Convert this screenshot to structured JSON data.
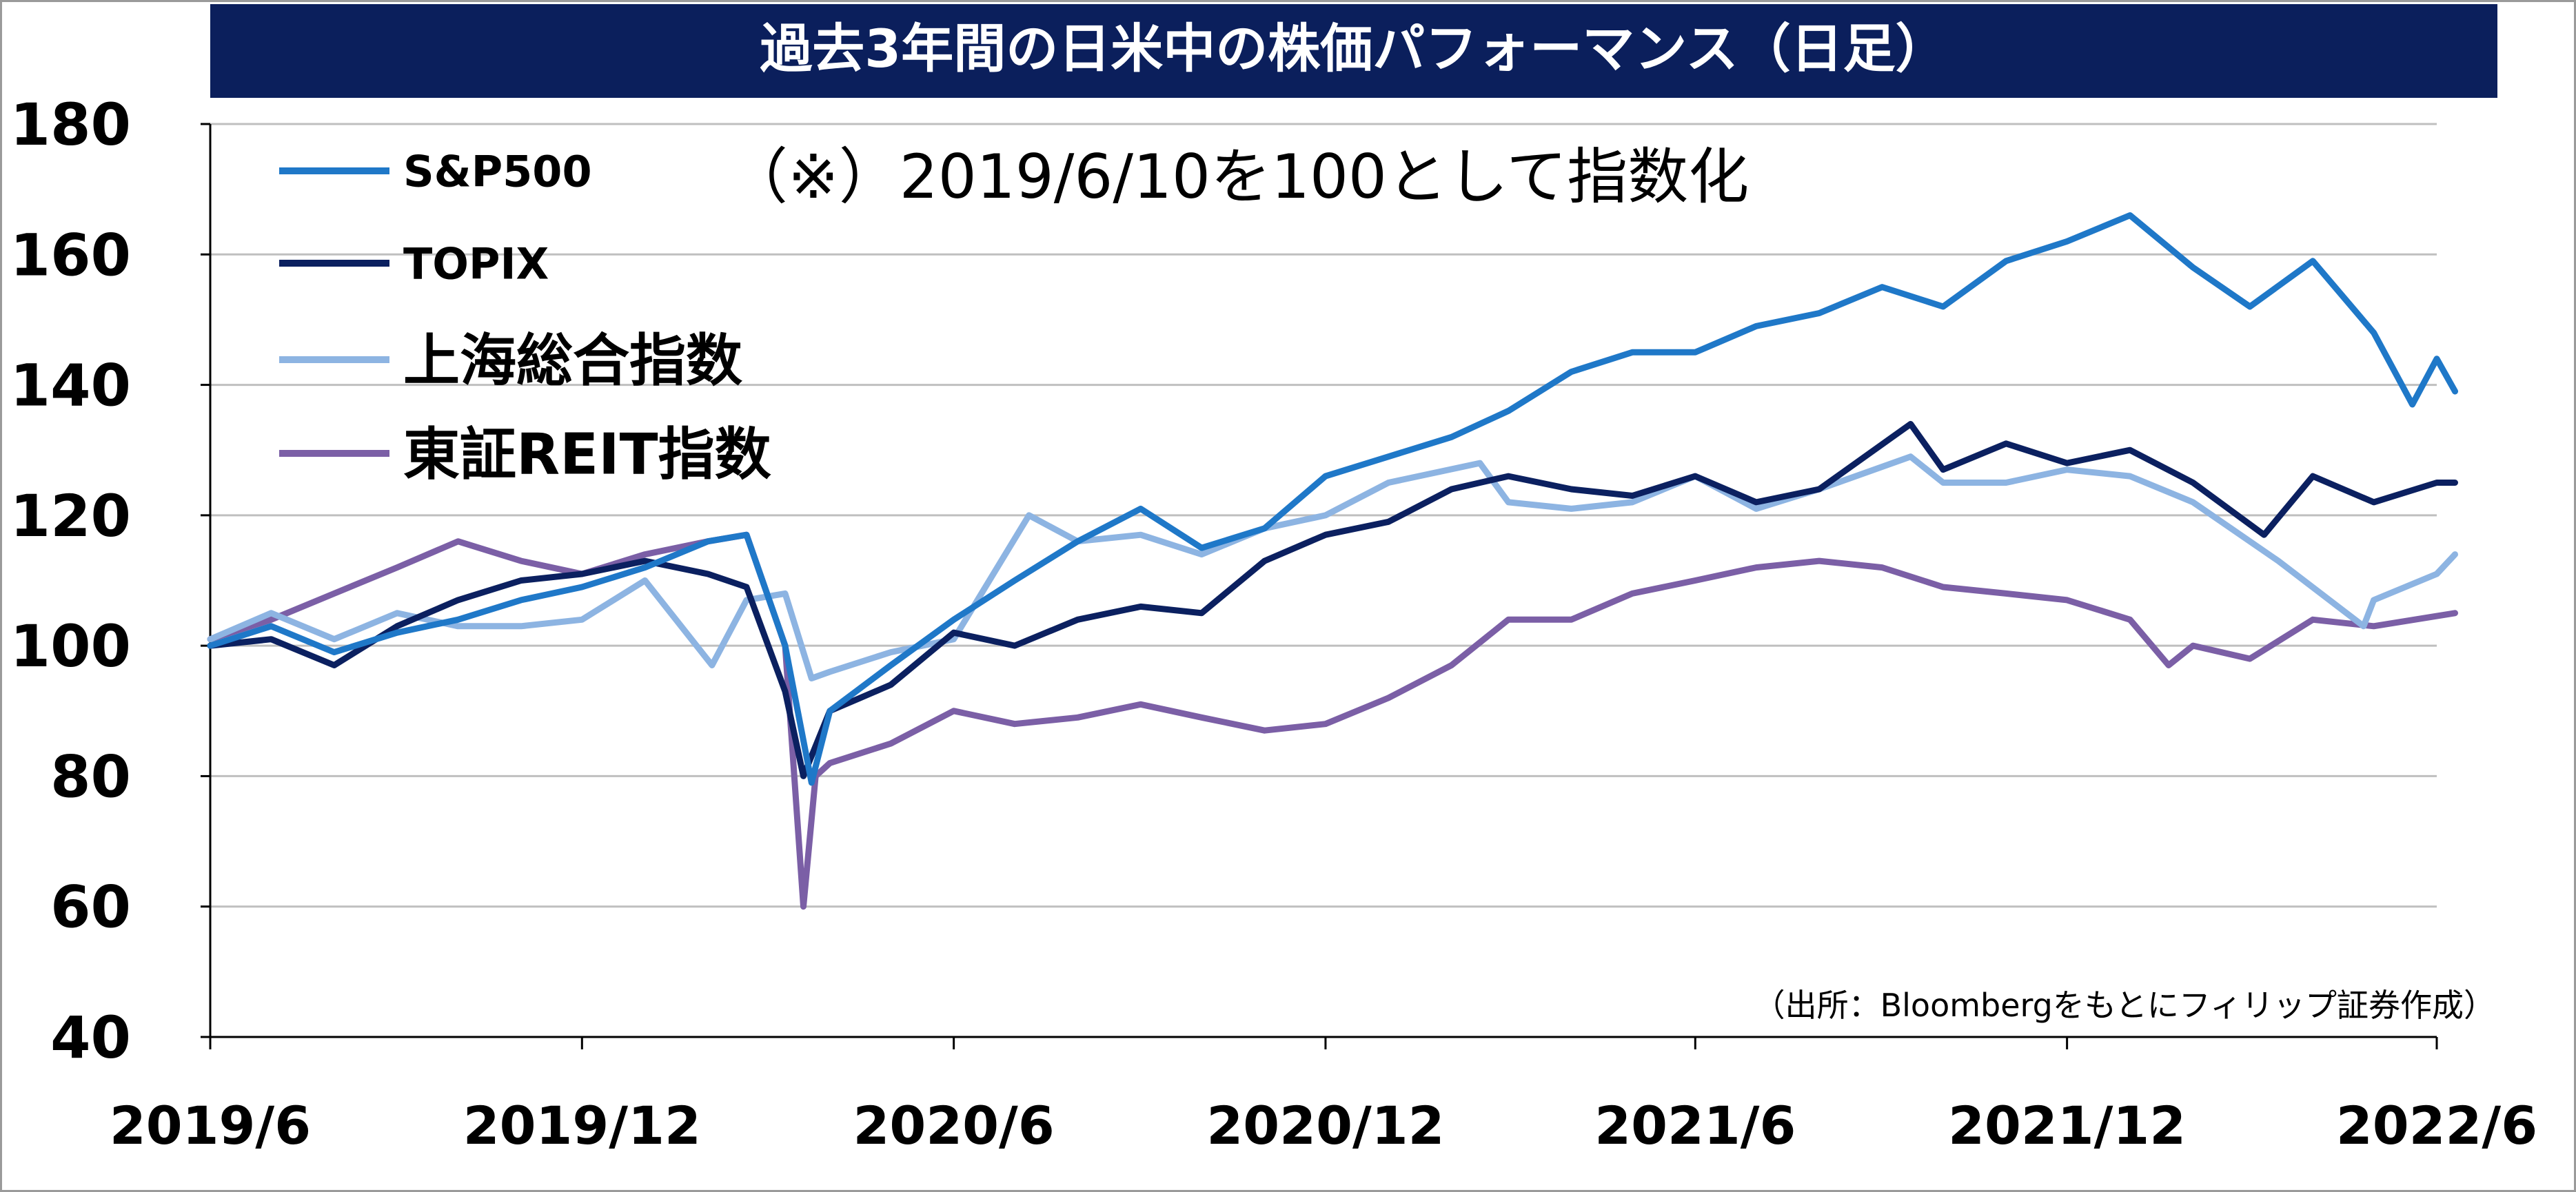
{
  "title": "過去3年間の日米中の株価パフォーマンス（日足）",
  "note": "（※）2019/6/10を100として指数化",
  "source": "（出所：Bloombergをもとにフィリップ証券作成）",
  "colors": {
    "title_bg": "#0b1f5c",
    "title_text": "#ffffff",
    "grid": "#bfbfbf",
    "axis": "#000000"
  },
  "chart_data": {
    "type": "line",
    "title": "過去3年間の日米中の株価パフォーマンス（日足）",
    "subtitle": "（※）2019/6/10を100として指数化",
    "xlabel": "",
    "ylabel": "",
    "ylim": [
      40,
      180
    ],
    "yticks": [
      40,
      60,
      80,
      100,
      120,
      140,
      160,
      180
    ],
    "xlim": [
      "2019-06-01",
      "2022-06-01"
    ],
    "xticks": [
      {
        "date": "2019-06-01",
        "label": "2019/6"
      },
      {
        "date": "2019-12-01",
        "label": "2019/12"
      },
      {
        "date": "2020-06-01",
        "label": "2020/6"
      },
      {
        "date": "2020-12-01",
        "label": "2020/12"
      },
      {
        "date": "2021-06-01",
        "label": "2021/6"
      },
      {
        "date": "2021-12-01",
        "label": "2021/12"
      },
      {
        "date": "2022-06-01",
        "label": "2022/6"
      }
    ],
    "grid": true,
    "legend_position": "top-left",
    "series": [
      {
        "name": "S&P500",
        "color": "#1f78c8",
        "points": [
          [
            "2019-06-01",
            100
          ],
          [
            "2019-07-01",
            103
          ],
          [
            "2019-08-01",
            99
          ],
          [
            "2019-09-01",
            102
          ],
          [
            "2019-10-01",
            104
          ],
          [
            "2019-11-01",
            107
          ],
          [
            "2019-12-01",
            109
          ],
          [
            "2020-01-01",
            112
          ],
          [
            "2020-02-01",
            116
          ],
          [
            "2020-02-20",
            117
          ],
          [
            "2020-03-10",
            100
          ],
          [
            "2020-03-23",
            79
          ],
          [
            "2020-04-01",
            90
          ],
          [
            "2020-05-01",
            97
          ],
          [
            "2020-06-01",
            104
          ],
          [
            "2020-07-01",
            110
          ],
          [
            "2020-08-01",
            116
          ],
          [
            "2020-09-01",
            121
          ],
          [
            "2020-10-01",
            115
          ],
          [
            "2020-11-01",
            118
          ],
          [
            "2020-12-01",
            126
          ],
          [
            "2021-01-01",
            129
          ],
          [
            "2021-02-01",
            132
          ],
          [
            "2021-03-01",
            136
          ],
          [
            "2021-04-01",
            142
          ],
          [
            "2021-05-01",
            145
          ],
          [
            "2021-06-01",
            145
          ],
          [
            "2021-07-01",
            149
          ],
          [
            "2021-08-01",
            151
          ],
          [
            "2021-09-01",
            155
          ],
          [
            "2021-10-01",
            152
          ],
          [
            "2021-11-01",
            159
          ],
          [
            "2021-12-01",
            162
          ],
          [
            "2022-01-01",
            166
          ],
          [
            "2022-02-01",
            158
          ],
          [
            "2022-03-01",
            152
          ],
          [
            "2022-04-01",
            159
          ],
          [
            "2022-05-01",
            148
          ],
          [
            "2022-05-20",
            137
          ],
          [
            "2022-06-01",
            144
          ],
          [
            "2022-06-10",
            139
          ]
        ]
      },
      {
        "name": "TOPIX",
        "color": "#0b2060",
        "points": [
          [
            "2019-06-01",
            100
          ],
          [
            "2019-07-01",
            101
          ],
          [
            "2019-08-01",
            97
          ],
          [
            "2019-09-01",
            103
          ],
          [
            "2019-10-01",
            107
          ],
          [
            "2019-11-01",
            110
          ],
          [
            "2019-12-01",
            111
          ],
          [
            "2020-01-01",
            113
          ],
          [
            "2020-02-01",
            111
          ],
          [
            "2020-02-20",
            109
          ],
          [
            "2020-03-10",
            93
          ],
          [
            "2020-03-19",
            80
          ],
          [
            "2020-04-01",
            90
          ],
          [
            "2020-05-01",
            94
          ],
          [
            "2020-06-01",
            102
          ],
          [
            "2020-07-01",
            100
          ],
          [
            "2020-08-01",
            104
          ],
          [
            "2020-09-01",
            106
          ],
          [
            "2020-10-01",
            105
          ],
          [
            "2020-11-01",
            113
          ],
          [
            "2020-12-01",
            117
          ],
          [
            "2021-01-01",
            119
          ],
          [
            "2021-02-01",
            124
          ],
          [
            "2021-03-01",
            126
          ],
          [
            "2021-04-01",
            124
          ],
          [
            "2021-05-01",
            123
          ],
          [
            "2021-06-01",
            126
          ],
          [
            "2021-07-01",
            122
          ],
          [
            "2021-08-01",
            124
          ],
          [
            "2021-09-15",
            134
          ],
          [
            "2021-10-01",
            127
          ],
          [
            "2021-11-01",
            131
          ],
          [
            "2021-12-01",
            128
          ],
          [
            "2022-01-01",
            130
          ],
          [
            "2022-02-01",
            125
          ],
          [
            "2022-03-08",
            117
          ],
          [
            "2022-04-01",
            126
          ],
          [
            "2022-05-01",
            122
          ],
          [
            "2022-06-01",
            125
          ],
          [
            "2022-06-10",
            125
          ]
        ]
      },
      {
        "name": "上海総合指数",
        "color": "#8db4e2",
        "points": [
          [
            "2019-06-01",
            101
          ],
          [
            "2019-07-01",
            105
          ],
          [
            "2019-08-01",
            101
          ],
          [
            "2019-09-01",
            105
          ],
          [
            "2019-10-01",
            103
          ],
          [
            "2019-11-01",
            103
          ],
          [
            "2019-12-01",
            104
          ],
          [
            "2020-01-01",
            110
          ],
          [
            "2020-02-03",
            97
          ],
          [
            "2020-02-20",
            107
          ],
          [
            "2020-03-10",
            108
          ],
          [
            "2020-03-23",
            95
          ],
          [
            "2020-04-01",
            96
          ],
          [
            "2020-05-01",
            99
          ],
          [
            "2020-06-01",
            101
          ],
          [
            "2020-07-08",
            120
          ],
          [
            "2020-08-01",
            116
          ],
          [
            "2020-09-01",
            117
          ],
          [
            "2020-10-01",
            114
          ],
          [
            "2020-11-01",
            118
          ],
          [
            "2020-12-01",
            120
          ],
          [
            "2021-01-01",
            125
          ],
          [
            "2021-02-15",
            128
          ],
          [
            "2021-03-01",
            122
          ],
          [
            "2021-04-01",
            121
          ],
          [
            "2021-05-01",
            122
          ],
          [
            "2021-06-01",
            126
          ],
          [
            "2021-07-01",
            121
          ],
          [
            "2021-08-01",
            124
          ],
          [
            "2021-09-15",
            129
          ],
          [
            "2021-10-01",
            125
          ],
          [
            "2021-11-01",
            125
          ],
          [
            "2021-12-01",
            127
          ],
          [
            "2022-01-01",
            126
          ],
          [
            "2022-02-01",
            122
          ],
          [
            "2022-03-15",
            113
          ],
          [
            "2022-04-26",
            103
          ],
          [
            "2022-05-01",
            107
          ],
          [
            "2022-06-01",
            111
          ],
          [
            "2022-06-10",
            114
          ]
        ]
      },
      {
        "name": "東証REIT指数",
        "color": "#7b5fa6",
        "points": [
          [
            "2019-06-01",
            101
          ],
          [
            "2019-07-01",
            104
          ],
          [
            "2019-08-01",
            108
          ],
          [
            "2019-09-01",
            112
          ],
          [
            "2019-10-01",
            116
          ],
          [
            "2019-11-01",
            113
          ],
          [
            "2019-12-01",
            111
          ],
          [
            "2020-01-01",
            114
          ],
          [
            "2020-02-01",
            116
          ],
          [
            "2020-02-20",
            117
          ],
          [
            "2020-03-10",
            100
          ],
          [
            "2020-03-19",
            60
          ],
          [
            "2020-03-25",
            80
          ],
          [
            "2020-04-01",
            82
          ],
          [
            "2020-05-01",
            85
          ],
          [
            "2020-06-01",
            90
          ],
          [
            "2020-07-01",
            88
          ],
          [
            "2020-08-01",
            89
          ],
          [
            "2020-09-01",
            91
          ],
          [
            "2020-10-01",
            89
          ],
          [
            "2020-11-01",
            87
          ],
          [
            "2020-12-01",
            88
          ],
          [
            "2021-01-01",
            92
          ],
          [
            "2021-02-01",
            97
          ],
          [
            "2021-03-01",
            104
          ],
          [
            "2021-04-01",
            104
          ],
          [
            "2021-05-01",
            108
          ],
          [
            "2021-06-01",
            110
          ],
          [
            "2021-07-01",
            112
          ],
          [
            "2021-08-01",
            113
          ],
          [
            "2021-09-01",
            112
          ],
          [
            "2021-10-01",
            109
          ],
          [
            "2021-11-01",
            108
          ],
          [
            "2021-12-01",
            107
          ],
          [
            "2022-01-01",
            104
          ],
          [
            "2022-01-20",
            97
          ],
          [
            "2022-02-01",
            100
          ],
          [
            "2022-03-01",
            98
          ],
          [
            "2022-04-01",
            104
          ],
          [
            "2022-05-01",
            103
          ],
          [
            "2022-06-10",
            105
          ]
        ]
      }
    ]
  }
}
